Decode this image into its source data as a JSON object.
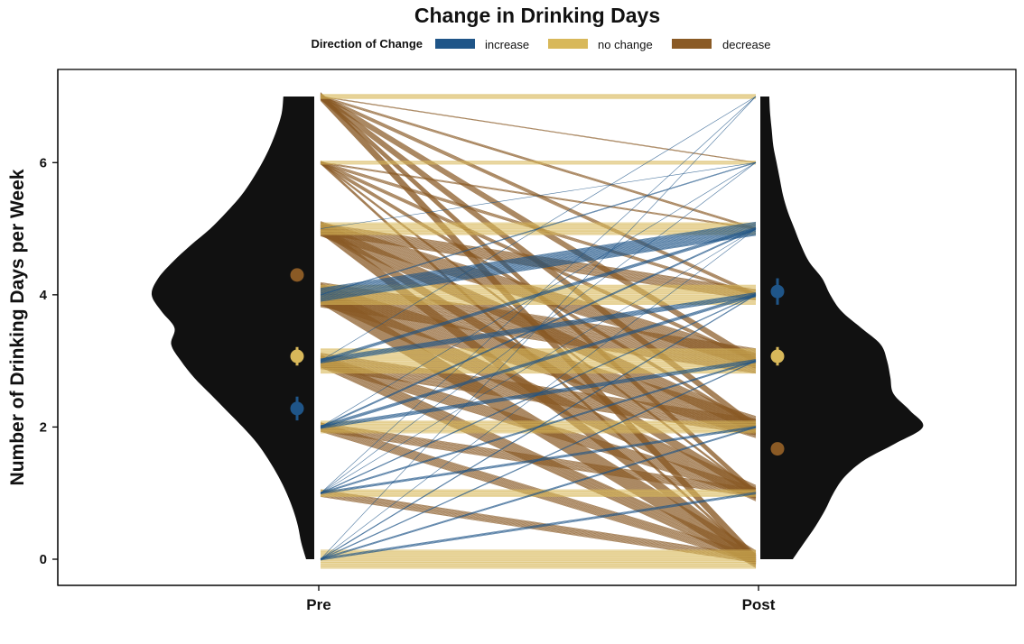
{
  "chart_data": {
    "type": "line",
    "title": "Change in Drinking Days",
    "xlabel": "",
    "ylabel": "Number of Drinking Days per Week",
    "categories": [
      "Pre",
      "Post"
    ],
    "ylim": [
      0,
      7
    ],
    "yticks": [
      0,
      2,
      4,
      6
    ],
    "grid": false,
    "legend": {
      "title": "Direction of Change",
      "placement": "top",
      "entries": [
        {
          "label": "increase",
          "color": "#1f5588"
        },
        {
          "label": "no change",
          "color": "#d8b85a"
        },
        {
          "label": "decrease",
          "color": "#8a5a25"
        }
      ]
    },
    "colors": {
      "increase": "#1f5588",
      "no change": "#d8b85a",
      "decrease": "#8a5a25",
      "density": "#111111"
    },
    "transitions": [
      {
        "pre": 0,
        "post": 0,
        "n": 30,
        "direction": "no change"
      },
      {
        "pre": 0,
        "post": 1,
        "n": 4,
        "direction": "increase"
      },
      {
        "pre": 0,
        "post": 2,
        "n": 3,
        "direction": "increase"
      },
      {
        "pre": 0,
        "post": 3,
        "n": 2,
        "direction": "increase"
      },
      {
        "pre": 0,
        "post": 4,
        "n": 2,
        "direction": "increase"
      },
      {
        "pre": 0,
        "post": 5,
        "n": 1,
        "direction": "increase"
      },
      {
        "pre": 0,
        "post": 7,
        "n": 1,
        "direction": "increase"
      },
      {
        "pre": 1,
        "post": 0,
        "n": 12,
        "direction": "decrease"
      },
      {
        "pre": 1,
        "post": 1,
        "n": 12,
        "direction": "no change"
      },
      {
        "pre": 1,
        "post": 2,
        "n": 4,
        "direction": "increase"
      },
      {
        "pre": 1,
        "post": 3,
        "n": 3,
        "direction": "increase"
      },
      {
        "pre": 1,
        "post": 4,
        "n": 2,
        "direction": "increase"
      },
      {
        "pre": 1,
        "post": 5,
        "n": 1,
        "direction": "increase"
      },
      {
        "pre": 1,
        "post": 6,
        "n": 1,
        "direction": "increase"
      },
      {
        "pre": 1,
        "post": 7,
        "n": 1,
        "direction": "increase"
      },
      {
        "pre": 2,
        "post": 0,
        "n": 15,
        "direction": "decrease"
      },
      {
        "pre": 2,
        "post": 1,
        "n": 14,
        "direction": "decrease"
      },
      {
        "pre": 2,
        "post": 2,
        "n": 20,
        "direction": "no change"
      },
      {
        "pre": 2,
        "post": 3,
        "n": 6,
        "direction": "increase"
      },
      {
        "pre": 2,
        "post": 4,
        "n": 5,
        "direction": "increase"
      },
      {
        "pre": 2,
        "post": 5,
        "n": 3,
        "direction": "increase"
      },
      {
        "pre": 2,
        "post": 6,
        "n": 1,
        "direction": "increase"
      },
      {
        "pre": 3,
        "post": 0,
        "n": 20,
        "direction": "decrease"
      },
      {
        "pre": 3,
        "post": 1,
        "n": 18,
        "direction": "decrease"
      },
      {
        "pre": 3,
        "post": 2,
        "n": 26,
        "direction": "decrease"
      },
      {
        "pre": 3,
        "post": 3,
        "n": 40,
        "direction": "no change"
      },
      {
        "pre": 3,
        "post": 4,
        "n": 8,
        "direction": "increase"
      },
      {
        "pre": 3,
        "post": 5,
        "n": 5,
        "direction": "increase"
      },
      {
        "pre": 3,
        "post": 7,
        "n": 1,
        "direction": "increase"
      },
      {
        "pre": 4,
        "post": 0,
        "n": 28,
        "direction": "decrease"
      },
      {
        "pre": 4,
        "post": 1,
        "n": 26,
        "direction": "decrease"
      },
      {
        "pre": 4,
        "post": 2,
        "n": 35,
        "direction": "decrease"
      },
      {
        "pre": 4,
        "post": 3,
        "n": 40,
        "direction": "decrease"
      },
      {
        "pre": 4,
        "post": 4,
        "n": 32,
        "direction": "no change"
      },
      {
        "pre": 4,
        "post": 5,
        "n": 22,
        "direction": "increase"
      },
      {
        "pre": 4,
        "post": 6,
        "n": 2,
        "direction": "increase"
      },
      {
        "pre": 5,
        "post": 0,
        "n": 16,
        "direction": "decrease"
      },
      {
        "pre": 5,
        "post": 1,
        "n": 14,
        "direction": "decrease"
      },
      {
        "pre": 5,
        "post": 2,
        "n": 22,
        "direction": "decrease"
      },
      {
        "pre": 5,
        "post": 3,
        "n": 24,
        "direction": "decrease"
      },
      {
        "pre": 5,
        "post": 4,
        "n": 18,
        "direction": "decrease"
      },
      {
        "pre": 5,
        "post": 5,
        "n": 20,
        "direction": "no change"
      },
      {
        "pre": 5,
        "post": 6,
        "n": 1,
        "direction": "increase"
      },
      {
        "pre": 6,
        "post": 0,
        "n": 5,
        "direction": "decrease"
      },
      {
        "pre": 6,
        "post": 1,
        "n": 4,
        "direction": "decrease"
      },
      {
        "pre": 6,
        "post": 2,
        "n": 6,
        "direction": "decrease"
      },
      {
        "pre": 6,
        "post": 3,
        "n": 6,
        "direction": "decrease"
      },
      {
        "pre": 6,
        "post": 4,
        "n": 5,
        "direction": "decrease"
      },
      {
        "pre": 6,
        "post": 5,
        "n": 3,
        "direction": "decrease"
      },
      {
        "pre": 6,
        "post": 6,
        "n": 6,
        "direction": "no change"
      },
      {
        "pre": 7,
        "post": 0,
        "n": 14,
        "direction": "decrease"
      },
      {
        "pre": 7,
        "post": 1,
        "n": 9,
        "direction": "decrease"
      },
      {
        "pre": 7,
        "post": 2,
        "n": 11,
        "direction": "decrease"
      },
      {
        "pre": 7,
        "post": 3,
        "n": 10,
        "direction": "decrease"
      },
      {
        "pre": 7,
        "post": 4,
        "n": 6,
        "direction": "decrease"
      },
      {
        "pre": 7,
        "post": 5,
        "n": 4,
        "direction": "decrease"
      },
      {
        "pre": 7,
        "post": 6,
        "n": 2,
        "direction": "decrease"
      },
      {
        "pre": 7,
        "post": 7,
        "n": 8,
        "direction": "no change"
      }
    ],
    "group_means": {
      "pre": [
        {
          "direction": "decrease",
          "mean": 4.3,
          "ci": [
            4.24,
            4.36
          ]
        },
        {
          "direction": "no change",
          "mean": 3.07,
          "ci": [
            2.93,
            3.21
          ]
        },
        {
          "direction": "increase",
          "mean": 2.28,
          "ci": [
            2.1,
            2.46
          ]
        }
      ],
      "post": [
        {
          "direction": "increase",
          "mean": 4.05,
          "ci": [
            3.85,
            4.25
          ]
        },
        {
          "direction": "no change",
          "mean": 3.07,
          "ci": [
            2.93,
            3.21
          ]
        },
        {
          "direction": "decrease",
          "mean": 1.67,
          "ci": [
            1.62,
            1.72
          ]
        }
      ]
    },
    "density": {
      "pre": [
        [
          0.0,
          0.05
        ],
        [
          0.25,
          0.08
        ],
        [
          0.5,
          0.1
        ],
        [
          0.75,
          0.13
        ],
        [
          1.0,
          0.17
        ],
        [
          1.25,
          0.22
        ],
        [
          1.5,
          0.28
        ],
        [
          1.75,
          0.35
        ],
        [
          2.0,
          0.44
        ],
        [
          2.25,
          0.54
        ],
        [
          2.5,
          0.64
        ],
        [
          2.75,
          0.74
        ],
        [
          3.0,
          0.82
        ],
        [
          3.25,
          0.88
        ],
        [
          3.5,
          0.86
        ],
        [
          3.75,
          0.94
        ],
        [
          4.0,
          1.0
        ],
        [
          4.25,
          0.96
        ],
        [
          4.5,
          0.87
        ],
        [
          4.75,
          0.76
        ],
        [
          5.0,
          0.64
        ],
        [
          5.25,
          0.54
        ],
        [
          5.5,
          0.45
        ],
        [
          5.75,
          0.38
        ],
        [
          6.0,
          0.32
        ],
        [
          6.25,
          0.27
        ],
        [
          6.5,
          0.23
        ],
        [
          6.75,
          0.2
        ],
        [
          7.0,
          0.19
        ]
      ],
      "post": [
        [
          0.0,
          0.2
        ],
        [
          0.25,
          0.27
        ],
        [
          0.5,
          0.34
        ],
        [
          0.75,
          0.4
        ],
        [
          1.0,
          0.45
        ],
        [
          1.25,
          0.52
        ],
        [
          1.5,
          0.64
        ],
        [
          1.75,
          0.83
        ],
        [
          2.0,
          1.0
        ],
        [
          2.25,
          0.92
        ],
        [
          2.5,
          0.82
        ],
        [
          2.75,
          0.8
        ],
        [
          3.0,
          0.78
        ],
        [
          3.25,
          0.74
        ],
        [
          3.5,
          0.62
        ],
        [
          3.75,
          0.5
        ],
        [
          4.0,
          0.43
        ],
        [
          4.25,
          0.38
        ],
        [
          4.5,
          0.3
        ],
        [
          4.75,
          0.25
        ],
        [
          5.0,
          0.21
        ],
        [
          5.25,
          0.17
        ],
        [
          5.5,
          0.14
        ],
        [
          5.75,
          0.12
        ],
        [
          6.0,
          0.1
        ],
        [
          6.25,
          0.08
        ],
        [
          6.5,
          0.07
        ],
        [
          6.75,
          0.06
        ],
        [
          7.0,
          0.055
        ]
      ]
    }
  }
}
